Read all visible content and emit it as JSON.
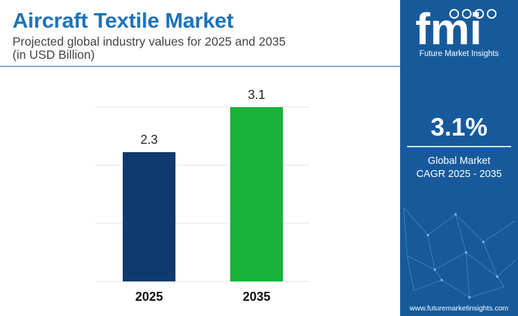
{
  "header": {
    "title": "Aircraft Textile Market",
    "subtitle_line1": "Projected global industry values for 2025 and 2035",
    "subtitle_line2": "(in USD Billion)"
  },
  "sidebar": {
    "logo_text": "fmi",
    "logo_subtitle": "Future Market Insights",
    "cagr_value": "3.1%",
    "cagr_label_line1": "Global Market",
    "cagr_label_line2": "CAGR 2025 - 2035",
    "website": "www.futuremarketinsights.com"
  },
  "chart_data": {
    "type": "bar",
    "categories": [
      "2025",
      "2035"
    ],
    "values": [
      2.3,
      3.1
    ],
    "data_labels": [
      "2.3",
      "3.1"
    ],
    "colors": [
      "#0d3b6e",
      "#17b33a"
    ],
    "grid": true,
    "ylim": [
      0,
      3.1
    ]
  },
  "colors": {
    "title": "#1e73b8",
    "sidebar_bg": "#175a9c"
  }
}
